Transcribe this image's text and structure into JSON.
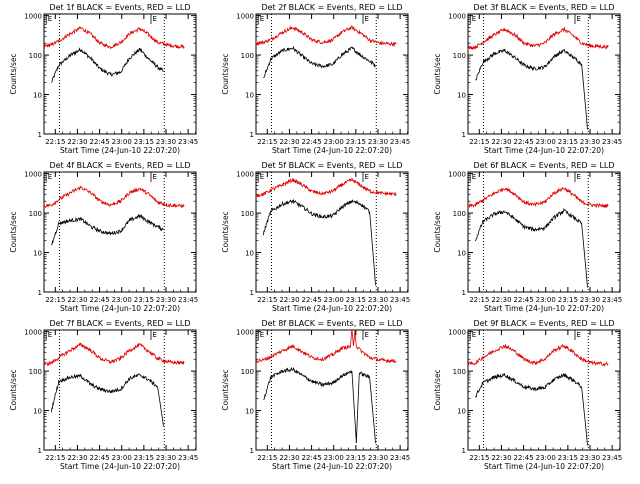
{
  "figure": {
    "ylabel": "Counts/sec",
    "xlabel": "Start Time (24-Jun-10 22:07:20)",
    "x_ticks": [
      "22:15",
      "22:30",
      "22:45",
      "23:00",
      "23:15",
      "23:30",
      "23:45"
    ],
    "y_ticks": [
      "1",
      "10",
      "100",
      "1000"
    ],
    "marker_text": "E",
    "colors": {
      "events": "#000000",
      "lld": "#e00000",
      "axes": "#000000",
      "background": "#ffffff"
    }
  },
  "chart_data": [
    {
      "type": "line",
      "title": "Det 1f BLACK = Events, RED = LLD",
      "x_unit": "minutes after 22:07:20",
      "xlim": [
        0,
        103
      ],
      "ylim": [
        1,
        1100
      ],
      "yscale": "log",
      "dotted_lines_x": [
        10.5,
        81.5
      ],
      "event_markers_x": [
        1.5,
        72.5
      ],
      "series": [
        {
          "name": "Events",
          "color": "#000000",
          "x": [
            5,
            10,
            18,
            25,
            32,
            38,
            45,
            52,
            58,
            65,
            71,
            77,
            81
          ],
          "y": [
            20,
            55,
            100,
            140,
            80,
            45,
            32,
            37,
            85,
            140,
            80,
            50,
            38
          ]
        },
        {
          "name": "LLD",
          "color": "#e00000",
          "x": [
            0,
            5,
            10,
            18,
            25,
            32,
            38,
            45,
            52,
            58,
            65,
            71,
            77,
            84,
            95
          ],
          "y": [
            170,
            180,
            230,
            350,
            490,
            330,
            200,
            160,
            210,
            350,
            470,
            330,
            210,
            180,
            160
          ]
        }
      ]
    },
    {
      "type": "line",
      "title": "Det 2f BLACK = Events, RED = LLD",
      "x_unit": "minutes after 22:07:20",
      "xlim": [
        0,
        103
      ],
      "ylim": [
        1,
        1100
      ],
      "yscale": "log",
      "dotted_lines_x": [
        10.5,
        81.5
      ],
      "event_markers_x": [
        1.5,
        72.5
      ],
      "series": [
        {
          "name": "Events",
          "color": "#000000",
          "x": [
            5,
            10,
            18,
            25,
            32,
            38,
            45,
            52,
            58,
            65,
            71,
            77,
            81
          ],
          "y": [
            25,
            80,
            130,
            150,
            90,
            60,
            52,
            58,
            100,
            150,
            100,
            70,
            55
          ]
        },
        {
          "name": "LLD",
          "color": "#e00000",
          "x": [
            0,
            5,
            10,
            18,
            25,
            32,
            38,
            45,
            52,
            58,
            65,
            71,
            77,
            84,
            95
          ],
          "y": [
            200,
            210,
            250,
            380,
            500,
            360,
            240,
            210,
            240,
            380,
            500,
            360,
            240,
            200,
            190
          ]
        }
      ]
    },
    {
      "type": "line",
      "title": "Det 3f BLACK = Events, RED = LLD",
      "x_unit": "minutes after 22:07:20",
      "xlim": [
        0,
        103
      ],
      "ylim": [
        1,
        1100
      ],
      "yscale": "log",
      "dotted_lines_x": [
        10.5,
        81.5
      ],
      "event_markers_x": [
        1.5,
        72.5
      ],
      "series": [
        {
          "name": "Events",
          "color": "#000000",
          "x": [
            5,
            10,
            18,
            25,
            32,
            38,
            45,
            52,
            58,
            65,
            71,
            77,
            81
          ],
          "y": [
            22,
            65,
            110,
            130,
            85,
            55,
            45,
            50,
            90,
            130,
            90,
            60,
            1.3
          ]
        },
        {
          "name": "LLD",
          "color": "#e00000",
          "x": [
            0,
            5,
            10,
            18,
            25,
            32,
            38,
            45,
            52,
            58,
            65,
            71,
            77,
            84,
            95
          ],
          "y": [
            150,
            160,
            210,
            330,
            450,
            320,
            200,
            170,
            200,
            330,
            450,
            320,
            200,
            170,
            160
          ]
        }
      ]
    },
    {
      "type": "line",
      "title": "Det 4f BLACK = Events, RED = LLD",
      "x_unit": "minutes after 22:07:20",
      "xlim": [
        0,
        103
      ],
      "ylim": [
        1,
        1100
      ],
      "yscale": "log",
      "dotted_lines_x": [
        10.5,
        81.5
      ],
      "event_markers_x": [
        1.5,
        72.5
      ],
      "series": [
        {
          "name": "Events",
          "color": "#000000",
          "x": [
            5,
            10,
            18,
            25,
            32,
            38,
            45,
            52,
            58,
            65,
            71,
            77,
            81
          ],
          "y": [
            15,
            55,
            65,
            70,
            45,
            35,
            30,
            35,
            65,
            85,
            60,
            45,
            38
          ]
        },
        {
          "name": "LLD",
          "color": "#e00000",
          "x": [
            0,
            5,
            10,
            18,
            25,
            32,
            38,
            45,
            52,
            58,
            65,
            71,
            77,
            84,
            95
          ],
          "y": [
            150,
            160,
            220,
            330,
            450,
            320,
            200,
            160,
            200,
            330,
            420,
            300,
            190,
            160,
            150
          ]
        }
      ]
    },
    {
      "type": "line",
      "title": "Det 5f BLACK = Events, RED = LLD",
      "x_unit": "minutes after 22:07:20",
      "xlim": [
        0,
        103
      ],
      "ylim": [
        1,
        1100
      ],
      "yscale": "log",
      "dotted_lines_x": [
        10.5,
        81.5
      ],
      "event_markers_x": [
        1.5,
        72.5
      ],
      "series": [
        {
          "name": "Events",
          "color": "#000000",
          "x": [
            5,
            10,
            18,
            25,
            32,
            38,
            45,
            52,
            58,
            65,
            71,
            77,
            81
          ],
          "y": [
            30,
            110,
            170,
            200,
            140,
            95,
            80,
            85,
            140,
            200,
            170,
            110,
            1.5
          ]
        },
        {
          "name": "LLD",
          "color": "#e00000",
          "x": [
            0,
            5,
            10,
            18,
            25,
            32,
            38,
            45,
            52,
            58,
            65,
            71,
            77,
            84,
            95
          ],
          "y": [
            280,
            300,
            380,
            520,
            700,
            500,
            350,
            310,
            360,
            520,
            700,
            500,
            360,
            320,
            300
          ]
        }
      ]
    },
    {
      "type": "line",
      "title": "Det 6f BLACK = Events, RED = LLD",
      "x_unit": "minutes after 22:07:20",
      "xlim": [
        0,
        103
      ],
      "ylim": [
        1,
        1100
      ],
      "yscale": "log",
      "dotted_lines_x": [
        10.5,
        81.5
      ],
      "event_markers_x": [
        1.5,
        72.5
      ],
      "series": [
        {
          "name": "Events",
          "color": "#000000",
          "x": [
            5,
            10,
            18,
            25,
            32,
            38,
            45,
            52,
            58,
            65,
            71,
            77,
            81
          ],
          "y": [
            20,
            60,
            95,
            110,
            70,
            45,
            38,
            42,
            75,
            115,
            80,
            55,
            1.3
          ]
        },
        {
          "name": "LLD",
          "color": "#e00000",
          "x": [
            0,
            5,
            10,
            18,
            25,
            32,
            38,
            45,
            52,
            58,
            65,
            71,
            77,
            84,
            95
          ],
          "y": [
            150,
            160,
            210,
            320,
            430,
            300,
            190,
            160,
            190,
            320,
            430,
            300,
            190,
            160,
            150
          ]
        }
      ]
    },
    {
      "type": "line",
      "title": "Det 7f BLACK = Events, RED = LLD",
      "x_unit": "minutes after 22:07:20",
      "xlim": [
        0,
        103
      ],
      "ylim": [
        1,
        1100
      ],
      "yscale": "log",
      "dotted_lines_x": [
        10.5,
        81.5
      ],
      "event_markers_x": [
        1.5,
        72.5
      ],
      "series": [
        {
          "name": "Events",
          "color": "#000000",
          "x": [
            5,
            10,
            18,
            25,
            32,
            38,
            45,
            52,
            58,
            65,
            71,
            77,
            81
          ],
          "y": [
            10,
            55,
            70,
            75,
            45,
            35,
            30,
            35,
            65,
            80,
            60,
            40,
            4
          ]
        },
        {
          "name": "LLD",
          "color": "#e00000",
          "x": [
            0,
            5,
            10,
            18,
            25,
            32,
            38,
            45,
            52,
            58,
            65,
            71,
            77,
            84,
            95
          ],
          "y": [
            150,
            160,
            220,
            340,
            470,
            330,
            210,
            170,
            210,
            340,
            460,
            320,
            210,
            170,
            160
          ]
        }
      ]
    },
    {
      "type": "line",
      "title": "Det 8f BLACK = Events, RED = LLD",
      "x_unit": "minutes after 22:07:20",
      "xlim": [
        0,
        103
      ],
      "ylim": [
        1,
        1100
      ],
      "yscale": "log",
      "dotted_lines_x": [
        10.5,
        81.5
      ],
      "event_markers_x": [
        1.5,
        72.5
      ],
      "series": [
        {
          "name": "Events",
          "color": "#000000",
          "x": [
            5,
            10,
            18,
            25,
            32,
            38,
            45,
            52,
            58,
            65,
            68,
            70,
            77,
            81
          ],
          "y": [
            18,
            70,
            100,
            110,
            75,
            55,
            45,
            50,
            75,
            100,
            1.5,
            90,
            70,
            1.5
          ]
        },
        {
          "name": "LLD",
          "color": "#e00000",
          "x": [
            0,
            5,
            10,
            18,
            25,
            32,
            38,
            45,
            52,
            58,
            64,
            65,
            66,
            67,
            68,
            71,
            77,
            84,
            95
          ],
          "y": [
            180,
            190,
            230,
            330,
            430,
            300,
            220,
            200,
            260,
            380,
            420,
            1100,
            420,
            1100,
            430,
            330,
            220,
            190,
            180
          ]
        }
      ]
    },
    {
      "type": "line",
      "title": "Det 9f BLACK = Events, RED = LLD",
      "x_unit": "minutes after 22:07:20",
      "xlim": [
        0,
        103
      ],
      "ylim": [
        1,
        1100
      ],
      "yscale": "log",
      "dotted_lines_x": [
        10.5,
        81.5
      ],
      "event_markers_x": [
        1.5,
        72.5
      ],
      "series": [
        {
          "name": "Events",
          "color": "#000000",
          "x": [
            5,
            10,
            18,
            25,
            32,
            38,
            45,
            52,
            58,
            65,
            71,
            77,
            81
          ],
          "y": [
            22,
            50,
            70,
            80,
            55,
            40,
            35,
            38,
            60,
            80,
            60,
            40,
            1.3
          ]
        },
        {
          "name": "LLD",
          "color": "#e00000",
          "x": [
            0,
            5,
            10,
            18,
            25,
            32,
            38,
            45,
            52,
            58,
            65,
            71,
            77,
            84,
            95
          ],
          "y": [
            150,
            160,
            220,
            330,
            440,
            310,
            200,
            160,
            200,
            330,
            440,
            310,
            200,
            160,
            150
          ]
        }
      ]
    }
  ]
}
